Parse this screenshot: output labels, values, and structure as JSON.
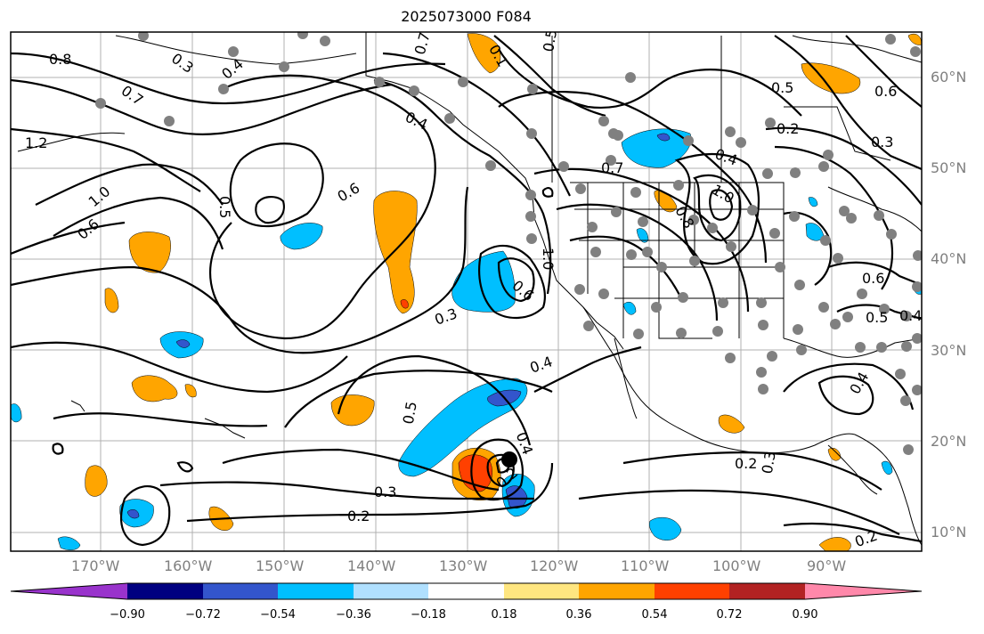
{
  "title": "2025073000 F084",
  "lat_labels": [
    "60°N",
    "50°N",
    "40°N",
    "30°N",
    "20°N",
    "10°N"
  ],
  "lon_labels": [
    "170°W",
    "160°W",
    "150°W",
    "140°W",
    "130°W",
    "120°W",
    "110°W",
    "100°W",
    "90°W"
  ],
  "contour_labels": [
    "0.8",
    "0.3",
    "0.4",
    "0.7",
    "1.2",
    "1.0",
    "0.6",
    "0.5",
    "0.6",
    "0.4",
    "0.7",
    "0.1",
    "0.5",
    "0.6",
    "0.5",
    "0.2",
    "0.3",
    "0.7",
    "0.4",
    "1.0",
    "0.8",
    "1.0",
    "0.6",
    "0.3",
    "0.4",
    "0.5",
    "0.4",
    "0.2",
    "0.3",
    "0.2",
    "0.4",
    "0.3",
    "0.2",
    "0.6",
    "0.5",
    "0.4",
    "0.2"
  ],
  "colorbar": {
    "labels": [
      "−0.90",
      "−0.72",
      "−0.54",
      "−0.36",
      "−0.18",
      "0.18",
      "0.36",
      "0.54",
      "0.72",
      "0.90"
    ],
    "colors": [
      "#9933cc",
      "#000080",
      "#3355cc",
      "#00bfff",
      "#b0e0ff",
      "#ffffff",
      "#ffe680",
      "#ffa500",
      "#ff4000",
      "#b22222",
      "#ff88aa"
    ]
  },
  "colors": {
    "pos_054": "#ffa500",
    "pos_072": "#ff4000",
    "neg_054": "#00bfff",
    "neg_072": "#3355cc",
    "station_dot": "#808080",
    "storm_dot": "#000000"
  }
}
